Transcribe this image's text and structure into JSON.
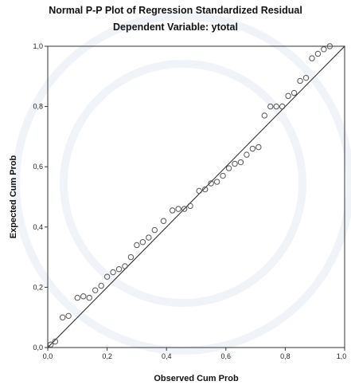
{
  "chart_data": {
    "type": "scatter",
    "title": "Normal P-P Plot of Regression Standardized Residual",
    "subtitle": "Dependent Variable: ytotal",
    "xlabel": "Observed Cum Prob",
    "ylabel": "Expected Cum Prob",
    "xlim": [
      0,
      1
    ],
    "ylim": [
      0,
      1
    ],
    "x_ticks": [
      "0,0",
      "0,2",
      "0,4",
      "0,6",
      "0,8",
      "1,0"
    ],
    "y_ticks": [
      "0,0",
      "0,2",
      "0,4",
      "0,6",
      "0,8",
      "1,0"
    ],
    "tick_values": [
      0,
      0.2,
      0.4,
      0.6,
      0.8,
      1.0
    ],
    "reference_line": [
      [
        0,
        0
      ],
      [
        1,
        1
      ]
    ],
    "grid": false,
    "points": [
      [
        0.01,
        0.01
      ],
      [
        0.025,
        0.02
      ],
      [
        0.05,
        0.1
      ],
      [
        0.07,
        0.105
      ],
      [
        0.1,
        0.165
      ],
      [
        0.12,
        0.17
      ],
      [
        0.14,
        0.165
      ],
      [
        0.16,
        0.19
      ],
      [
        0.18,
        0.205
      ],
      [
        0.2,
        0.235
      ],
      [
        0.22,
        0.25
      ],
      [
        0.24,
        0.26
      ],
      [
        0.26,
        0.27
      ],
      [
        0.28,
        0.3
      ],
      [
        0.3,
        0.34
      ],
      [
        0.32,
        0.35
      ],
      [
        0.34,
        0.365
      ],
      [
        0.36,
        0.39
      ],
      [
        0.39,
        0.42
      ],
      [
        0.42,
        0.455
      ],
      [
        0.44,
        0.46
      ],
      [
        0.46,
        0.46
      ],
      [
        0.48,
        0.47
      ],
      [
        0.51,
        0.52
      ],
      [
        0.53,
        0.525
      ],
      [
        0.55,
        0.545
      ],
      [
        0.57,
        0.55
      ],
      [
        0.59,
        0.57
      ],
      [
        0.61,
        0.595
      ],
      [
        0.63,
        0.61
      ],
      [
        0.65,
        0.615
      ],
      [
        0.67,
        0.64
      ],
      [
        0.69,
        0.66
      ],
      [
        0.71,
        0.665
      ],
      [
        0.73,
        0.77
      ],
      [
        0.75,
        0.8
      ],
      [
        0.77,
        0.8
      ],
      [
        0.79,
        0.8
      ],
      [
        0.81,
        0.835
      ],
      [
        0.83,
        0.845
      ],
      [
        0.85,
        0.885
      ],
      [
        0.87,
        0.895
      ],
      [
        0.89,
        0.96
      ],
      [
        0.91,
        0.975
      ],
      [
        0.93,
        0.99
      ],
      [
        0.95,
        1.0
      ]
    ],
    "point_color": "#555555",
    "line_color": "#222222"
  }
}
